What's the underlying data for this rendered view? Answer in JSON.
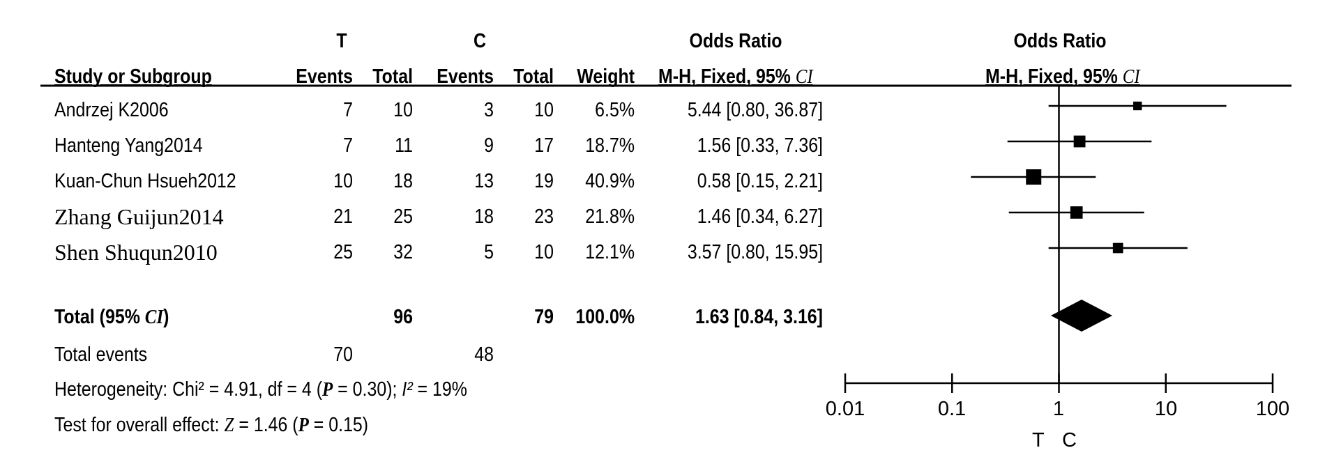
{
  "headers": {
    "group_t": "T",
    "group_c": "C",
    "odds_ratio_table": "Odds Ratio",
    "odds_ratio_plot": "Odds Ratio",
    "study": "Study or Subgroup",
    "events_t": "Events",
    "total_t": "Total",
    "events_c": "Events",
    "total_c": "Total",
    "weight": "Weight",
    "method_table": "M-H, Fixed, 95% ",
    "method_plot": "M-H, Fixed, 95% ",
    "ci": "CI"
  },
  "studies": [
    {
      "name": "Andrzej K2006",
      "font": "sans",
      "events_t": "7",
      "total_t": "10",
      "events_c": "3",
      "total_c": "10",
      "weight": "6.5%",
      "or_text": "5.44 [0.80, 36.87]"
    },
    {
      "name": "Hanteng Yang2014",
      "font": "sans",
      "events_t": "7",
      "total_t": "11",
      "events_c": "9",
      "total_c": "17",
      "weight": "18.7%",
      "or_text": "1.56 [0.33, 7.36]"
    },
    {
      "name": "Kuan-Chun Hsueh2012",
      "font": "sans",
      "events_t": "10",
      "total_t": "18",
      "events_c": "13",
      "total_c": "19",
      "weight": "40.9%",
      "or_text": "0.58 [0.15, 2.21]"
    },
    {
      "name": "Zhang Guijun2014",
      "font": "serif",
      "events_t": "21",
      "total_t": "25",
      "events_c": "18",
      "total_c": "23",
      "weight": "21.8%",
      "or_text": "1.46 [0.34, 6.27]"
    },
    {
      "name": "Shen Shuqun2010",
      "font": "serif",
      "events_t": "25",
      "total_t": "32",
      "events_c": "5",
      "total_c": "10",
      "weight": "12.1%",
      "or_text": "3.57 [0.80, 15.95]"
    }
  ],
  "total": {
    "label_prefix": "Total (95% ",
    "label_ci": "CI",
    "label_suffix": ")",
    "total_t": "96",
    "total_c": "79",
    "weight": "100.0%",
    "or_text": "1.63 [0.84, 3.16]"
  },
  "total_events": {
    "label": "Total events",
    "t": "70",
    "c": "48"
  },
  "heterogeneity": {
    "prefix": "Heterogeneity: Chi² = 4.91, df = 4 (",
    "p": "P",
    "p_value": " = 0.30); ",
    "i2": "I²",
    "i2_value": " = 19%"
  },
  "overall_effect": {
    "prefix": "Test for overall effect: ",
    "z": "Z",
    "z_value": " = 1.46 (",
    "p": "P",
    "p_value": " = 0.15)"
  },
  "axis": {
    "tick_labels": [
      "0.01",
      "0.1",
      "1",
      "10",
      "100"
    ],
    "favours_left": "T",
    "favours_right": "C"
  },
  "chart_data": {
    "type": "forest",
    "x_scale": "log",
    "xlim": [
      0.01,
      100
    ],
    "x_ticks": [
      0.01,
      0.1,
      1,
      10,
      100
    ],
    "null_line": 1,
    "studies": [
      {
        "name": "Andrzej K2006",
        "or": 5.44,
        "lower": 0.8,
        "upper": 36.87,
        "weight": 6.5
      },
      {
        "name": "Hanteng Yang2014",
        "or": 1.56,
        "lower": 0.33,
        "upper": 7.36,
        "weight": 18.7
      },
      {
        "name": "Kuan-Chun Hsueh2012",
        "or": 0.58,
        "lower": 0.15,
        "upper": 2.21,
        "weight": 40.9
      },
      {
        "name": "Zhang Guijun2014",
        "or": 1.46,
        "lower": 0.34,
        "upper": 6.27,
        "weight": 21.8
      },
      {
        "name": "Shen Shuqun2010",
        "or": 3.57,
        "lower": 0.8,
        "upper": 15.95,
        "weight": 12.1
      }
    ],
    "pooled": {
      "or": 1.63,
      "lower": 0.84,
      "upper": 3.16
    }
  }
}
